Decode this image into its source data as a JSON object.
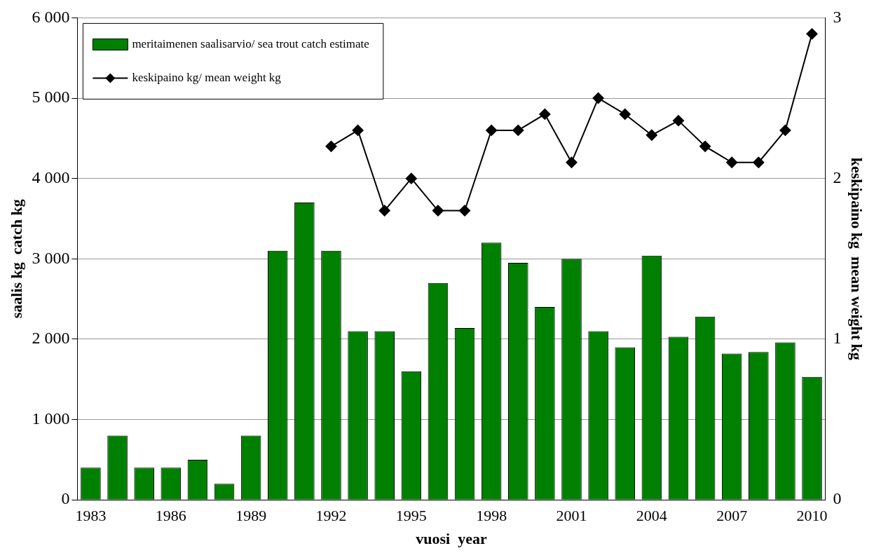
{
  "chart_data": {
    "type": "bar",
    "xlabel": "vuosi  year",
    "ylabel": "saalis kg  catch kg",
    "y2label": "keskipaino kg  mean weight kg",
    "categories": [
      "1983",
      null,
      null,
      "1986",
      null,
      null,
      "1989",
      null,
      null,
      "1992",
      null,
      null,
      "1995",
      null,
      null,
      "1998",
      null,
      null,
      "2001",
      null,
      null,
      "2004",
      null,
      null,
      "2007",
      null,
      null,
      "2010"
    ],
    "series": [
      {
        "name": "meritaimenen saalisarvio/ sea trout catch estimate",
        "color": "#008000",
        "values": [
          400,
          800,
          400,
          400,
          500,
          200,
          800,
          3100,
          3700,
          3100,
          2100,
          2100,
          1600,
          2700,
          2140,
          3200,
          2950,
          2400,
          3000,
          2100,
          1900,
          3040,
          2030,
          2280,
          1820,
          1840,
          1960,
          1530
        ]
      },
      {
        "name": "keskipaino kg/ mean weight kg",
        "type": "line",
        "axis": "y2",
        "color": "#000000",
        "marker": "diamond",
        "values": [
          null,
          null,
          null,
          null,
          null,
          null,
          null,
          null,
          null,
          2.2,
          2.3,
          1.8,
          2.0,
          1.8,
          1.8,
          2.3,
          2.3,
          2.4,
          2.1,
          2.5,
          2.4,
          2.27,
          2.36,
          2.2,
          2.1,
          2.1,
          2.3,
          2.9
        ]
      }
    ],
    "ylim": [
      0,
      6000
    ],
    "yticks": [
      0,
      {
        "value": 1000,
        "label": "1 000"
      },
      {
        "value": 2000,
        "label": "2 000"
      },
      {
        "value": 3000,
        "label": "3 000"
      },
      {
        "value": 4000,
        "label": "4 000"
      },
      {
        "value": 5000,
        "label": "5 000"
      },
      {
        "value": 6000,
        "label": "6 000"
      }
    ],
    "y2lim": [
      0,
      3
    ],
    "y2ticks": [
      0,
      1,
      2,
      3
    ],
    "grid": "y",
    "legend": "top left"
  }
}
